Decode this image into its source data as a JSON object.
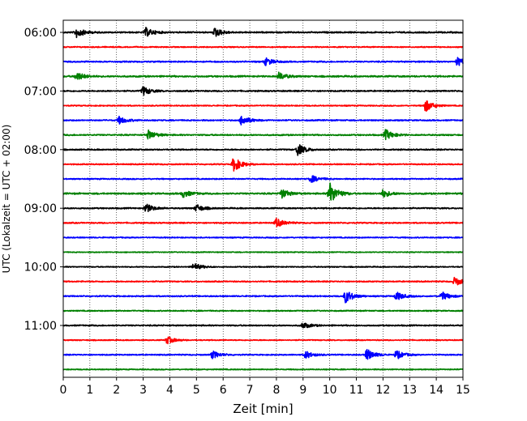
{
  "chart_data": {
    "type": "line",
    "xlabel": "Zeit  [min]",
    "ylabel": "UTC (Lokalzeit = UTC + 02:00)",
    "xlim": [
      0,
      15
    ],
    "x_ticks": [
      0,
      1,
      2,
      3,
      4,
      5,
      6,
      7,
      8,
      9,
      10,
      11,
      12,
      13,
      14,
      15
    ],
    "x_tick_labels": [
      "0",
      "1",
      "2",
      "3",
      "4",
      "5",
      "6",
      "7",
      "8",
      "9",
      "10",
      "11",
      "12",
      "13",
      "14",
      "15"
    ],
    "y_tick_labels": [
      "06:00",
      "07:00",
      "08:00",
      "09:00",
      "10:00",
      "11:00"
    ],
    "y_tick_rows": [
      0,
      4,
      8,
      12,
      16,
      20
    ],
    "grid": "x",
    "traces_per_hour": 4,
    "minutes_per_trace": 15,
    "trace_colors": [
      "#000000",
      "#ff0000",
      "#0000ff",
      "#008000"
    ],
    "traces": [
      {
        "start": "06:00",
        "color": "#000000",
        "base_amp": 0.3,
        "events": [
          [
            0.5,
            0.7
          ],
          [
            3.1,
            0.6
          ],
          [
            5.7,
            0.6
          ]
        ]
      },
      {
        "start": "06:15",
        "color": "#ff0000",
        "base_amp": 0.22,
        "events": []
      },
      {
        "start": "06:30",
        "color": "#0000ff",
        "base_amp": 0.28,
        "events": [
          [
            7.6,
            0.5
          ],
          [
            14.8,
            0.6
          ]
        ]
      },
      {
        "start": "06:45",
        "color": "#008000",
        "base_amp": 0.32,
        "events": [
          [
            0.5,
            0.6
          ],
          [
            8.1,
            0.5
          ]
        ]
      },
      {
        "start": "07:00",
        "color": "#000000",
        "base_amp": 0.28,
        "events": [
          [
            3.0,
            0.6
          ]
        ]
      },
      {
        "start": "07:15",
        "color": "#ff0000",
        "base_amp": 0.22,
        "events": [
          [
            13.6,
            0.8
          ]
        ]
      },
      {
        "start": "07:30",
        "color": "#0000ff",
        "base_amp": 0.26,
        "events": [
          [
            2.1,
            0.5
          ],
          [
            6.7,
            0.7
          ]
        ]
      },
      {
        "start": "07:45",
        "color": "#008000",
        "base_amp": 0.28,
        "events": [
          [
            3.2,
            0.6
          ],
          [
            12.1,
            0.7
          ]
        ]
      },
      {
        "start": "08:00",
        "color": "#000000",
        "base_amp": 0.26,
        "events": [
          [
            8.8,
            0.8
          ]
        ]
      },
      {
        "start": "08:15",
        "color": "#ff0000",
        "base_amp": 0.24,
        "events": [
          [
            6.4,
            1.0
          ]
        ]
      },
      {
        "start": "08:30",
        "color": "#0000ff",
        "base_amp": 0.24,
        "events": [
          [
            9.3,
            0.5
          ]
        ]
      },
      {
        "start": "08:45",
        "color": "#008000",
        "base_amp": 0.32,
        "events": [
          [
            4.5,
            0.5
          ],
          [
            8.2,
            0.6
          ],
          [
            10.0,
            1.5
          ],
          [
            12.0,
            0.5
          ]
        ]
      },
      {
        "start": "09:00",
        "color": "#000000",
        "base_amp": 0.26,
        "events": [
          [
            3.1,
            0.6
          ],
          [
            5.0,
            0.5
          ]
        ]
      },
      {
        "start": "09:15",
        "color": "#ff0000",
        "base_amp": 0.26,
        "events": [
          [
            8.0,
            0.6
          ]
        ]
      },
      {
        "start": "09:30",
        "color": "#0000ff",
        "base_amp": 0.22,
        "events": []
      },
      {
        "start": "09:45",
        "color": "#008000",
        "base_amp": 0.18,
        "events": []
      },
      {
        "start": "10:00",
        "color": "#000000",
        "base_amp": 0.2,
        "events": [
          [
            4.9,
            0.5
          ]
        ]
      },
      {
        "start": "10:15",
        "color": "#ff0000",
        "base_amp": 0.24,
        "events": [
          [
            14.7,
            0.6
          ]
        ]
      },
      {
        "start": "10:30",
        "color": "#0000ff",
        "base_amp": 0.26,
        "events": [
          [
            10.6,
            0.9
          ],
          [
            12.5,
            0.6
          ],
          [
            14.2,
            0.6
          ]
        ]
      },
      {
        "start": "10:45",
        "color": "#008000",
        "base_amp": 0.22,
        "events": []
      },
      {
        "start": "11:00",
        "color": "#000000",
        "base_amp": 0.26,
        "events": [
          [
            9.0,
            0.4
          ]
        ]
      },
      {
        "start": "11:15",
        "color": "#ff0000",
        "base_amp": 0.2,
        "events": [
          [
            3.9,
            0.5
          ]
        ]
      },
      {
        "start": "11:30",
        "color": "#0000ff",
        "base_amp": 0.24,
        "events": [
          [
            5.6,
            0.5
          ],
          [
            9.1,
            0.5
          ],
          [
            11.4,
            0.8
          ],
          [
            12.5,
            0.6
          ]
        ]
      },
      {
        "start": "11:45",
        "color": "#008000",
        "base_amp": 0.2,
        "events": []
      }
    ]
  }
}
